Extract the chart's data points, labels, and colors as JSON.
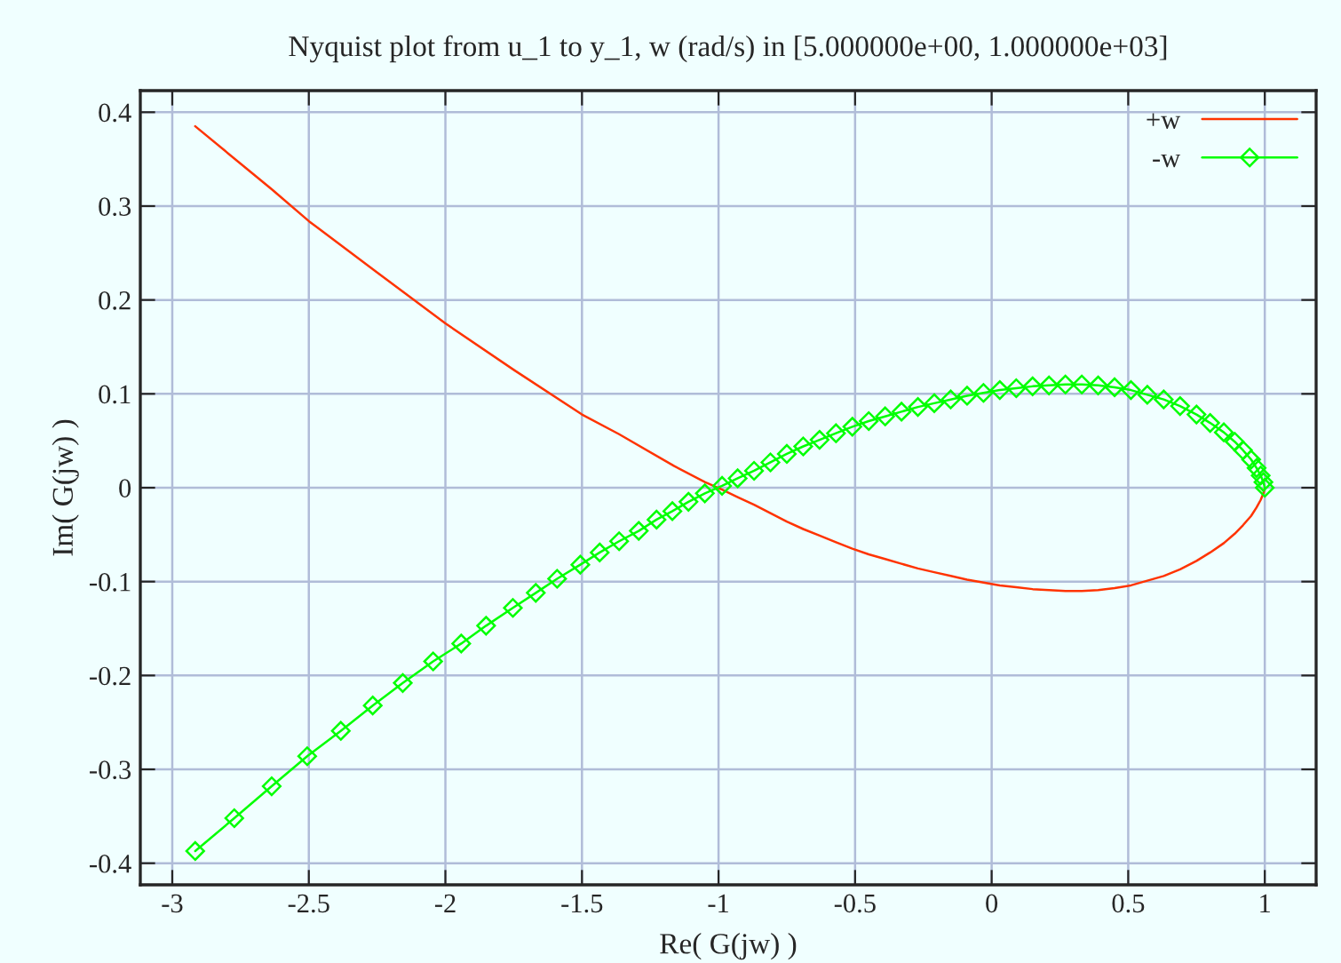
{
  "chart_data": {
    "type": "line",
    "title": "Nyquist plot from u_1 to y_1, w (rad/s) in [5.000000e+00, 1.000000e+03]",
    "xlabel": "Re( G(jw) )",
    "ylabel": "Im( G(jw) )",
    "xlim": [
      -3.117,
      1.188
    ],
    "ylim": [
      -0.423,
      0.423
    ],
    "xticks": [
      -3,
      -2.5,
      -2,
      -1.5,
      -1,
      -0.5,
      0,
      0.5,
      1
    ],
    "yticks": [
      -0.4,
      -0.3,
      -0.2,
      -0.1,
      0,
      0.1,
      0.2,
      0.3,
      0.4
    ],
    "grid": true,
    "legend": "top right",
    "series": [
      {
        "name": "+w",
        "color": "#ff3300",
        "marker": "none",
        "x": [
          1.0,
          0.995,
          0.985,
          0.97,
          0.95,
          0.92,
          0.89,
          0.85,
          0.8,
          0.75,
          0.69,
          0.63,
          0.57,
          0.51,
          0.45,
          0.39,
          0.33,
          0.27,
          0.21,
          0.15,
          0.09,
          0.03,
          -0.03,
          -0.09,
          -0.15,
          -0.21,
          -0.27,
          -0.33,
          -0.39,
          -0.45,
          -0.51,
          -0.57,
          -0.63,
          -0.69,
          -0.75,
          -0.81,
          -0.87,
          -0.93,
          -0.987,
          -1.05,
          -1.162,
          -1.364,
          -1.5,
          -1.747,
          -2.0,
          -2.253,
          -2.5,
          -2.636,
          -2.916
        ],
        "values": [
          0.0,
          -0.006,
          -0.013,
          -0.021,
          -0.03,
          -0.04,
          -0.049,
          -0.059,
          -0.069,
          -0.078,
          -0.087,
          -0.094,
          -0.099,
          -0.104,
          -0.107,
          -0.109,
          -0.11,
          -0.11,
          -0.109,
          -0.108,
          -0.106,
          -0.104,
          -0.101,
          -0.098,
          -0.094,
          -0.09,
          -0.086,
          -0.081,
          -0.076,
          -0.071,
          -0.065,
          -0.058,
          -0.051,
          -0.044,
          -0.036,
          -0.027,
          -0.018,
          -0.01,
          -0.002,
          0.006,
          0.023,
          0.057,
          0.078,
          0.125,
          0.175,
          0.23,
          0.284,
          0.318,
          0.385
        ]
      },
      {
        "name": "-w",
        "color": "#00ff00",
        "marker": "diamond",
        "x": [
          -2.916,
          -2.773,
          -2.636,
          -2.506,
          -2.383,
          -2.266,
          -2.156,
          -2.045,
          -1.942,
          -1.851,
          -1.753,
          -1.669,
          -1.591,
          -1.506,
          -1.435,
          -1.364,
          -1.292,
          -1.227,
          -1.169,
          -1.11,
          -1.05,
          -0.987,
          -0.93,
          -0.87,
          -0.81,
          -0.75,
          -0.69,
          -0.63,
          -0.57,
          -0.51,
          -0.45,
          -0.39,
          -0.33,
          -0.27,
          -0.21,
          -0.15,
          -0.09,
          -0.03,
          0.03,
          0.09,
          0.15,
          0.21,
          0.27,
          0.33,
          0.39,
          0.45,
          0.51,
          0.57,
          0.63,
          0.69,
          0.75,
          0.8,
          0.85,
          0.89,
          0.92,
          0.95,
          0.97,
          0.985,
          0.995,
          1.0
        ],
        "values": [
          -0.387,
          -0.352,
          -0.318,
          -0.286,
          -0.259,
          -0.232,
          -0.208,
          -0.185,
          -0.166,
          -0.147,
          -0.128,
          -0.112,
          -0.097,
          -0.082,
          -0.069,
          -0.057,
          -0.046,
          -0.034,
          -0.025,
          -0.015,
          -0.006,
          0.002,
          0.01,
          0.018,
          0.027,
          0.036,
          0.044,
          0.051,
          0.058,
          0.065,
          0.071,
          0.076,
          0.081,
          0.086,
          0.09,
          0.094,
          0.098,
          0.101,
          0.104,
          0.106,
          0.108,
          0.109,
          0.11,
          0.11,
          0.109,
          0.107,
          0.104,
          0.099,
          0.094,
          0.087,
          0.078,
          0.069,
          0.059,
          0.049,
          0.04,
          0.03,
          0.021,
          0.013,
          0.006,
          0.0
        ]
      }
    ]
  }
}
